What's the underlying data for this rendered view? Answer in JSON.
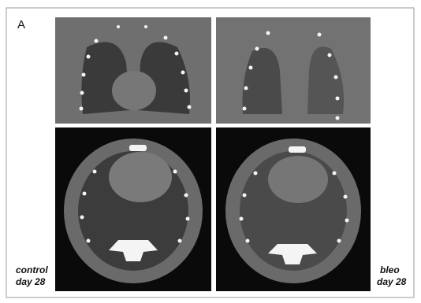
{
  "panel_label": "A",
  "captions": [
    {
      "line1": "control",
      "line2": "day 28"
    },
    {
      "line1": "bleo",
      "line2": "day 28"
    }
  ]
}
